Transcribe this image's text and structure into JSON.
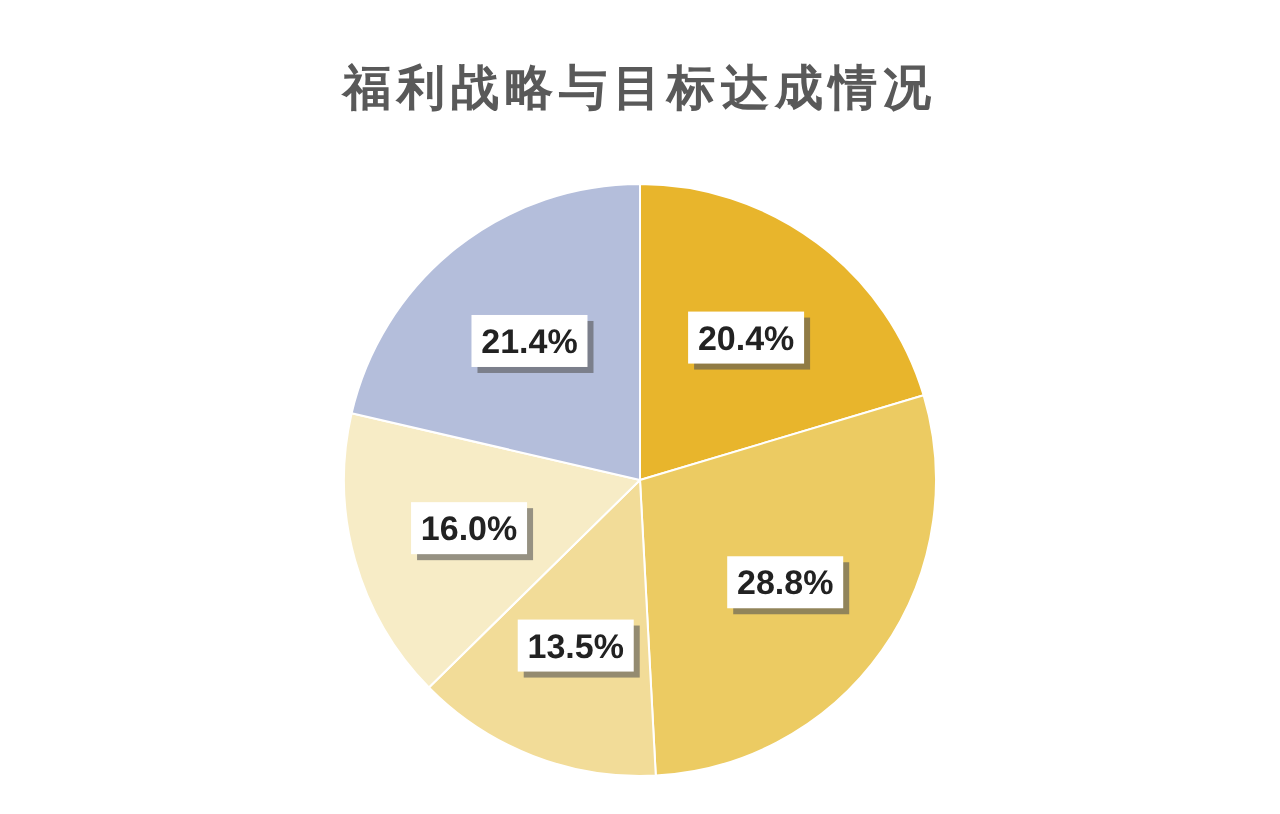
{
  "chart_data": {
    "type": "pie",
    "title": "福利战略与目标达成情况",
    "categories": [
      null,
      null,
      null,
      null,
      null
    ],
    "values": [
      20.4,
      28.8,
      13.5,
      16.0,
      21.4
    ],
    "value_labels": [
      "20.4%",
      "28.8%",
      "13.5%",
      "16.0%",
      "21.4%"
    ],
    "colors": [
      "#e8b52c",
      "#eccb62",
      "#f2dc98",
      "#f7ecc6",
      "#b4bedb"
    ]
  }
}
